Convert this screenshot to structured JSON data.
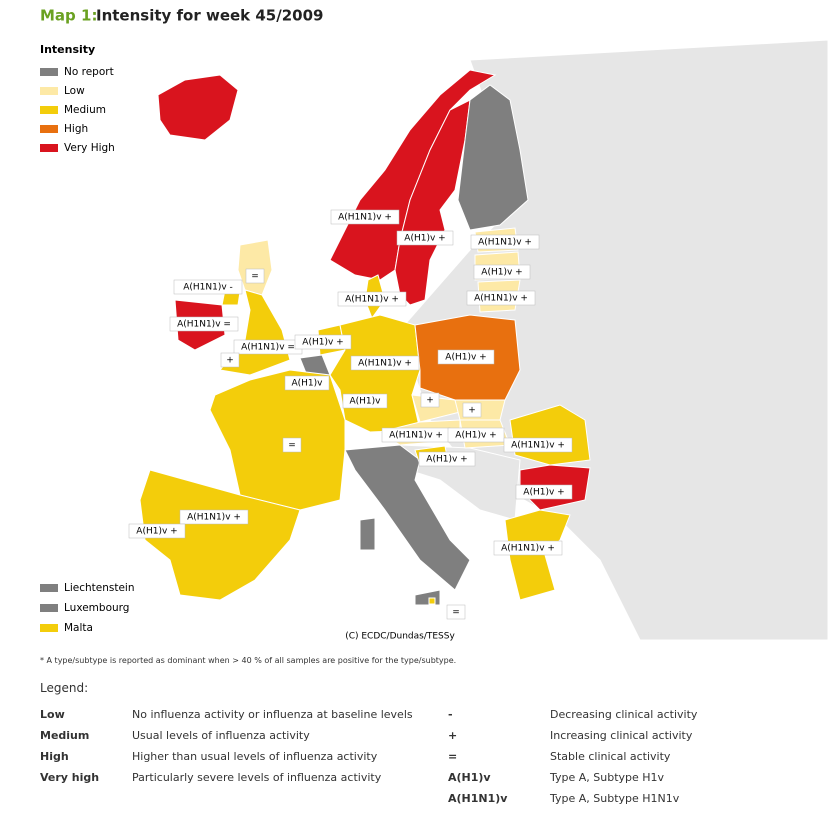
{
  "header": {
    "prefix": "Map 1:",
    "title": "Intensity for week 45/2009"
  },
  "intensity_legend": {
    "title": "Intensity",
    "items": [
      {
        "label": "No report",
        "color": "#7f7f7f"
      },
      {
        "label": "Low",
        "color": "#fde9a6"
      },
      {
        "label": "Medium",
        "color": "#f3cd0b"
      },
      {
        "label": "High",
        "color": "#e8700f"
      },
      {
        "label": "Very High",
        "color": "#d9141e"
      }
    ]
  },
  "map_labels": [
    "A(H1N1)v +",
    "A(H1)v +",
    "A(H1N1)v +",
    "A(H1)v +",
    "A(H1N1)v +",
    "A(H1N1)v +",
    "=",
    "A(H1N1)v -",
    "A(H1N1)v =",
    "A(H1N1)v =",
    "A(H1)v +",
    "+",
    "A(H1N1)v +",
    "A(H1)v",
    "A(H1)v +",
    "A(H1)v",
    "+",
    "+",
    "=",
    "A(H1N1)v +",
    "A(H1)v +",
    "A(H1N1)v +",
    "A(H1)v +",
    "A(H1)v +",
    "A(H1N1)v +",
    "A(H1)v +",
    "A(H1N1)v +",
    "="
  ],
  "small_states": [
    {
      "label": "Liechtenstein",
      "color": "#7f7f7f"
    },
    {
      "label": "Luxembourg",
      "color": "#7f7f7f"
    },
    {
      "label": "Malta",
      "color": "#f3cd0b"
    }
  ],
  "credit": "(C) ECDC/Dundas/TESSy",
  "footnote": "* A type/subtype is reported as dominant when > 40 % of all samples are positive for the type/subtype.",
  "legend": {
    "title": "Legend:",
    "levels": [
      {
        "term": "Low",
        "description": "No influenza activity or influenza at baseline levels"
      },
      {
        "term": "Medium",
        "description": "Usual levels of influenza activity"
      },
      {
        "term": "High",
        "description": "Higher than usual levels of influenza activity"
      },
      {
        "term": "Very high",
        "description": "Particularly severe levels of influenza activity"
      }
    ],
    "symbols": [
      {
        "symbol": "-",
        "meaning": "Decreasing clinical activity"
      },
      {
        "symbol": "+",
        "meaning": "Increasing clinical activity"
      },
      {
        "symbol": "=",
        "meaning": "Stable clinical activity"
      },
      {
        "symbol": "A(H1)v",
        "meaning": "Type A, Subtype H1v"
      },
      {
        "symbol": "A(H1N1)v",
        "meaning": "Type A, Subtype H1N1v"
      }
    ]
  }
}
